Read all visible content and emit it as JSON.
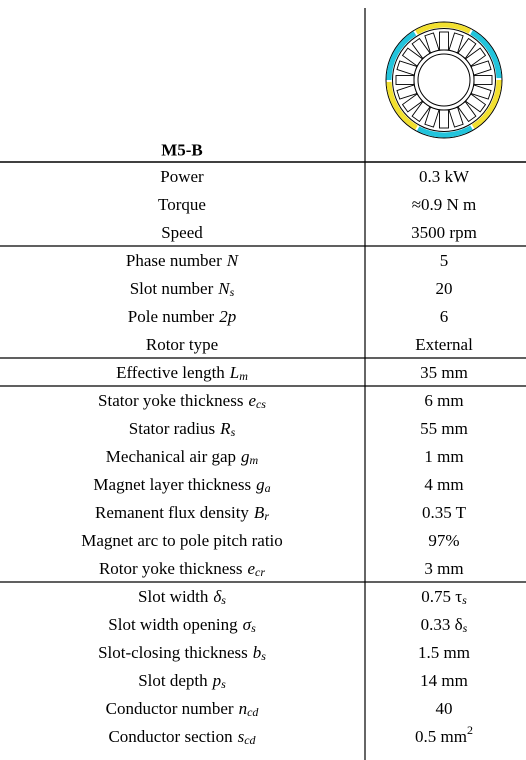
{
  "header": {
    "title": "M5-B"
  },
  "groups": [
    [
      {
        "name": "Power",
        "value": "0.3 kW"
      },
      {
        "name": "Torque",
        "value": "≈0.9 N m"
      },
      {
        "name": "Speed",
        "value": "3500 rpm"
      }
    ],
    [
      {
        "name": "Phase number",
        "sym": "N",
        "value": "5"
      },
      {
        "name": "Slot number",
        "sym": "N",
        "sub": "s",
        "value": "20"
      },
      {
        "name": "Pole number",
        "sym": "2p",
        "value": "6"
      },
      {
        "name": "Rotor type",
        "value": "External"
      }
    ],
    [
      {
        "name": "Effective length",
        "sym": "L",
        "sub": "m",
        "value": "35 mm"
      }
    ],
    [
      {
        "name": "Stator yoke thickness",
        "sym": "e",
        "sub": "cs",
        "value": "6 mm"
      },
      {
        "name": "Stator radius",
        "sym": "R",
        "sub": "s",
        "value": "55 mm"
      },
      {
        "name": "Mechanical air gap",
        "sym": "g",
        "sub": "m",
        "value": "1 mm"
      },
      {
        "name": "Magnet layer thickness",
        "sym": "g",
        "sub": "a",
        "value": "4 mm"
      },
      {
        "name": "Remanent flux density",
        "sym": "B",
        "sub": "r",
        "value": "0.35 T"
      },
      {
        "name": "Magnet arc to pole pitch ratio",
        "value": "97%"
      },
      {
        "name": "Rotor yoke thickness",
        "sym": "e",
        "sub": "cr",
        "value": "3 mm"
      }
    ],
    [
      {
        "name": "Slot width",
        "sym": "δ",
        "sub": "s",
        "value": "0.75 τ",
        "vsub": "s"
      },
      {
        "name": "Slot width opening",
        "sym": "σ",
        "sub": "s",
        "value": "0.33 δ",
        "vsub": "s"
      },
      {
        "name": "Slot-closing thickness",
        "sym": "b",
        "sub": "s",
        "value": "1.5 mm"
      },
      {
        "name": "Slot depth",
        "sym": "p",
        "sub": "s",
        "value": "14 mm"
      },
      {
        "name": "Conductor number",
        "sym": "n",
        "sub": "cd",
        "value": "40"
      },
      {
        "name": "Conductor section",
        "sym": "s",
        "sub": "cd",
        "value": "0.5 mm",
        "vsup": "2"
      }
    ]
  ]
}
